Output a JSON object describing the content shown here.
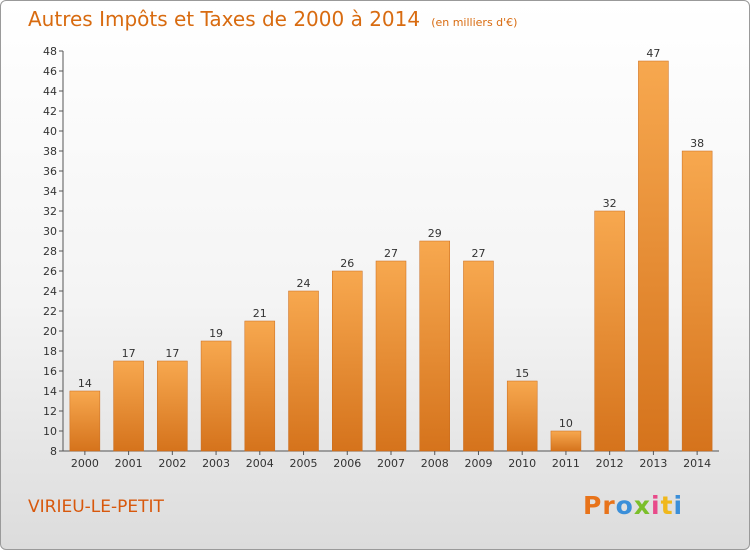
{
  "header": {
    "title": "Autres Impôts et Taxes de 2000 à 2014",
    "subtitle": "(en milliers d'€)"
  },
  "footer": {
    "commune": "VIRIEU-LE-PETIT",
    "logo_letters": [
      "P",
      "r",
      "o",
      "x",
      "i",
      "t",
      "i"
    ],
    "logo_colors": [
      "#e8731a",
      "#e8731a",
      "#3b8fd9",
      "#7bbf2a",
      "#e84a8a",
      "#f0b81c",
      "#3b8fd9"
    ]
  },
  "chart_data": {
    "type": "bar",
    "title": "Autres Impôts et Taxes de 2000 à 2014",
    "xlabel": "",
    "ylabel": "",
    "categories": [
      "2000",
      "2001",
      "2002",
      "2003",
      "2004",
      "2005",
      "2006",
      "2007",
      "2008",
      "2009",
      "2010",
      "2011",
      "2012",
      "2013",
      "2014"
    ],
    "values": [
      14,
      17,
      17,
      19,
      21,
      24,
      26,
      27,
      29,
      27,
      15,
      10,
      32,
      47,
      38
    ],
    "ylim": [
      8,
      48
    ],
    "ytick_step": 2,
    "grid": false,
    "bar_color": "#e8862e",
    "bar_color_light": "#f7a84f",
    "bar_color_dark": "#d5731c"
  }
}
